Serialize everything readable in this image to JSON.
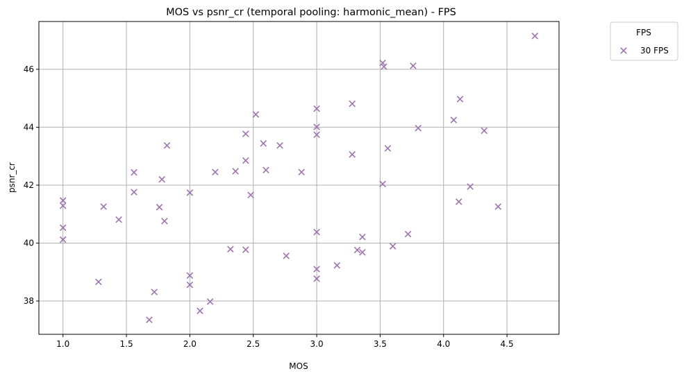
{
  "chart_data": {
    "type": "scatter",
    "title": "MOS vs psnr_cr (temporal pooling: harmonic_mean) - FPS",
    "xlabel": "MOS",
    "ylabel": "psnr_cr",
    "xlim": [
      0.81,
      4.91
    ],
    "ylim": [
      36.85,
      47.65
    ],
    "xticks": [
      "1.0",
      "1.5",
      "2.0",
      "2.5",
      "3.0",
      "3.5",
      "4.0",
      "4.5"
    ],
    "yticks": [
      "38",
      "40",
      "42",
      "44",
      "46"
    ],
    "grid": true,
    "marker": "x",
    "legend": {
      "title": "FPS",
      "placement": "outside-top-right"
    },
    "series": [
      {
        "name": "30 FPS",
        "color": "#9d73b0",
        "points": [
          [
            1.0,
            41.47
          ],
          [
            1.0,
            41.29
          ],
          [
            1.0,
            40.53
          ],
          [
            1.0,
            40.12
          ],
          [
            1.28,
            38.66
          ],
          [
            1.32,
            41.26
          ],
          [
            1.44,
            40.81
          ],
          [
            1.56,
            42.44
          ],
          [
            1.56,
            41.76
          ],
          [
            1.68,
            37.35
          ],
          [
            1.72,
            38.31
          ],
          [
            1.76,
            41.24
          ],
          [
            1.78,
            42.2
          ],
          [
            1.8,
            40.76
          ],
          [
            1.82,
            43.37
          ],
          [
            2.0,
            41.74
          ],
          [
            2.0,
            38.88
          ],
          [
            2.0,
            38.56
          ],
          [
            2.08,
            37.66
          ],
          [
            2.16,
            37.98
          ],
          [
            2.2,
            42.45
          ],
          [
            2.32,
            39.79
          ],
          [
            2.36,
            42.48
          ],
          [
            2.44,
            43.77
          ],
          [
            2.44,
            42.85
          ],
          [
            2.44,
            39.77
          ],
          [
            2.48,
            41.66
          ],
          [
            2.52,
            44.44
          ],
          [
            2.58,
            43.44
          ],
          [
            2.6,
            42.52
          ],
          [
            2.71,
            43.37
          ],
          [
            2.76,
            39.56
          ],
          [
            2.88,
            42.45
          ],
          [
            3.0,
            44.64
          ],
          [
            3.0,
            44.01
          ],
          [
            3.0,
            43.74
          ],
          [
            3.0,
            40.38
          ],
          [
            3.0,
            39.1
          ],
          [
            3.0,
            38.77
          ],
          [
            3.16,
            39.23
          ],
          [
            3.28,
            44.81
          ],
          [
            3.28,
            43.06
          ],
          [
            3.32,
            39.76
          ],
          [
            3.36,
            40.21
          ],
          [
            3.36,
            39.68
          ],
          [
            3.52,
            46.22
          ],
          [
            3.53,
            46.09
          ],
          [
            3.52,
            42.04
          ],
          [
            3.56,
            43.27
          ],
          [
            3.6,
            39.89
          ],
          [
            3.72,
            40.31
          ],
          [
            3.76,
            46.12
          ],
          [
            3.8,
            43.97
          ],
          [
            4.08,
            44.25
          ],
          [
            4.12,
            41.43
          ],
          [
            4.13,
            44.97
          ],
          [
            4.21,
            41.95
          ],
          [
            4.32,
            43.88
          ],
          [
            4.43,
            41.26
          ],
          [
            4.72,
            47.15
          ]
        ]
      }
    ]
  }
}
